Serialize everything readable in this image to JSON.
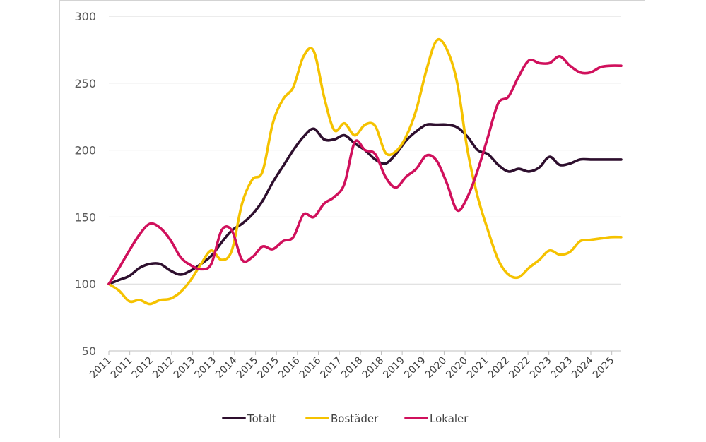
{
  "chart_data": {
    "type": "line",
    "title": "",
    "xlabel": "",
    "ylabel": "",
    "ylim": [
      50,
      300
    ],
    "yticks": [
      50,
      100,
      150,
      200,
      250,
      300
    ],
    "x_tick_labels": [
      "2011",
      "2011",
      "2012",
      "2012",
      "2013",
      "2013",
      "2014",
      "2015",
      "2015",
      "2016",
      "2016",
      "2017",
      "2018",
      "2018",
      "2019",
      "2019",
      "2020",
      "2020",
      "2021",
      "2022",
      "2022",
      "2023",
      "2023",
      "2024",
      "2025"
    ],
    "grid": "horizontal",
    "legend_position": "bottom",
    "x_range": [
      0,
      100
    ],
    "series": [
      {
        "name": "Totalt",
        "color": "#2e0f2e",
        "x": [
          0,
          2,
          4,
          6,
          8,
          10,
          12,
          14,
          16,
          18,
          20,
          22,
          24,
          26,
          28,
          30,
          32,
          34,
          36,
          38,
          40,
          42,
          44,
          46,
          48,
          50,
          52,
          54,
          56,
          58,
          60,
          62,
          64,
          66,
          68,
          70,
          72,
          74,
          76,
          78,
          80,
          82,
          84,
          86,
          88,
          90,
          92,
          94,
          96,
          98,
          100
        ],
        "y": [
          100,
          103,
          106,
          112,
          115,
          115,
          110,
          107,
          110,
          115,
          121,
          131,
          140,
          145,
          152,
          162,
          176,
          188,
          200,
          210,
          216,
          208,
          208,
          211,
          205,
          200,
          193,
          190,
          197,
          207,
          214,
          219,
          219,
          219,
          217,
          210,
          200,
          197,
          189,
          184,
          186,
          184,
          187,
          195,
          189,
          190,
          193,
          193,
          193,
          193,
          193
        ]
      },
      {
        "name": "Bostäder",
        "color": "#f5c200",
        "x": [
          0,
          2,
          4,
          6,
          8,
          10,
          12,
          14,
          16,
          18,
          20,
          22,
          24,
          26,
          28,
          30,
          32,
          34,
          36,
          38,
          40,
          42,
          44,
          46,
          48,
          50,
          52,
          54,
          56,
          58,
          60,
          62,
          64,
          66,
          68,
          70,
          72,
          74,
          76,
          78,
          80,
          82,
          84,
          86,
          88,
          90,
          92,
          94,
          96,
          98,
          100
        ],
        "y": [
          100,
          95,
          87,
          88,
          85,
          88,
          89,
          94,
          103,
          115,
          125,
          118,
          125,
          160,
          178,
          184,
          220,
          238,
          247,
          270,
          274,
          240,
          215,
          220,
          211,
          219,
          218,
          198,
          199,
          210,
          230,
          260,
          282,
          275,
          250,
          200,
          165,
          140,
          118,
          107,
          105,
          112,
          118,
          125,
          122,
          124,
          132,
          133,
          134,
          135,
          135
        ]
      },
      {
        "name": "Lokaler",
        "color": "#d0105c",
        "x": [
          0,
          2,
          4,
          6,
          8,
          10,
          12,
          14,
          16,
          18,
          20,
          22,
          24,
          26,
          28,
          30,
          32,
          34,
          36,
          38,
          40,
          42,
          44,
          46,
          48,
          50,
          52,
          54,
          56,
          58,
          60,
          62,
          64,
          66,
          68,
          70,
          72,
          74,
          76,
          78,
          80,
          82,
          84,
          86,
          88,
          90,
          92,
          94,
          96,
          98,
          100
        ],
        "y": [
          100,
          112,
          125,
          137,
          145,
          142,
          133,
          120,
          114,
          111,
          115,
          140,
          140,
          118,
          120,
          128,
          126,
          132,
          135,
          152,
          150,
          160,
          165,
          175,
          206,
          200,
          197,
          180,
          172,
          180,
          186,
          196,
          192,
          175,
          155,
          165,
          185,
          210,
          235,
          240,
          255,
          267,
          265,
          265,
          270,
          263,
          258,
          258,
          262,
          263,
          263
        ]
      }
    ]
  }
}
